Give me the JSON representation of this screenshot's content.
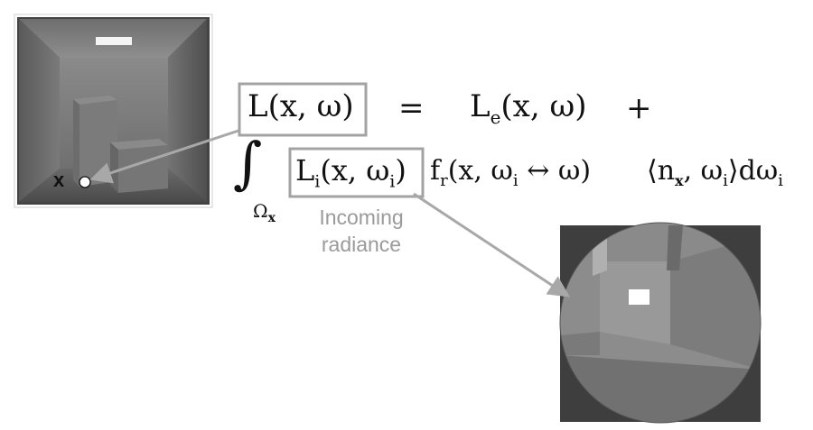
{
  "equation": {
    "lhs": "L(x, ω)",
    "equals": "=",
    "emitted": "L",
    "emitted_sub": "e",
    "emitted_args": "(x, ω)",
    "plus": "+",
    "integral": "∫",
    "domain": "Ω",
    "domain_sub": "x",
    "incoming": "L",
    "incoming_sub": "i",
    "incoming_args": "(x, ω",
    "incoming_args_sub": "i",
    "incoming_close": ")",
    "brdf": "f",
    "brdf_sub": "r",
    "brdf_args": "(x, ω",
    "brdf_args_sub": "i",
    "brdf_rest": " ↔ ω)",
    "cos_term": "⟨n",
    "cos_term_sub": "x",
    "cos_rest": ", ω",
    "cos_rest_sub": "i",
    "cos_close": "⟩dω",
    "measure_sub": "i"
  },
  "annotations": {
    "incoming_label_line1": "Incoming",
    "incoming_label_line2": "radiance",
    "point_label": "x"
  },
  "colors": {
    "box_outline": "#a3a3a3",
    "arrow": "#a8a8a8",
    "label_text": "#9a9a9a",
    "ink": "#111111"
  }
}
